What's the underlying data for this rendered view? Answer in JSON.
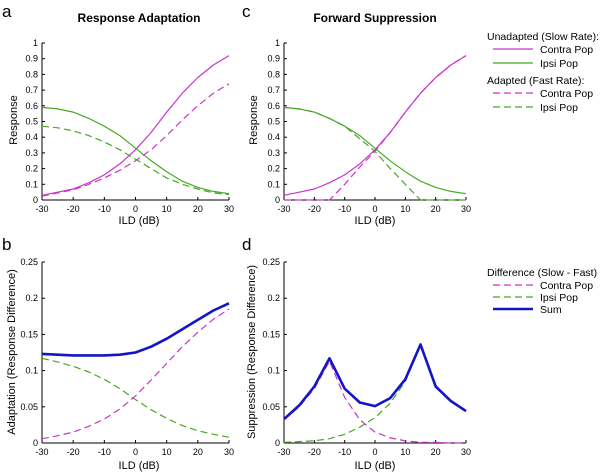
{
  "colors": {
    "contra": "#cc33cc",
    "ipsi": "#44aa22",
    "sum": "#1515c8"
  },
  "panels": {
    "a": {
      "label": "a",
      "title": "Response Adaptation",
      "xlabel": "ILD (dB)",
      "ylabel": "Response",
      "xlim": [
        -30,
        30
      ],
      "ylim": [
        0,
        1
      ],
      "xticks": [
        "-30",
        "-20",
        "-10",
        "0",
        "10",
        "20",
        "30"
      ],
      "yticks": [
        "0",
        "0.1",
        "0.2",
        "0.3",
        "0.4",
        "0.5",
        "0.6",
        "0.7",
        "0.8",
        "0.9",
        "1"
      ]
    },
    "c": {
      "label": "c",
      "title": "Forward Suppression",
      "xlabel": "ILD (dB)",
      "ylabel": "Response",
      "xlim": [
        -30,
        30
      ],
      "ylim": [
        0,
        1
      ],
      "xticks": [
        "-30",
        "-20",
        "-10",
        "0",
        "10",
        "20",
        "30"
      ],
      "yticks": [
        "0",
        "0.1",
        "0.2",
        "0.3",
        "0.4",
        "0.5",
        "0.6",
        "0.7",
        "0.8",
        "0.9",
        "1"
      ]
    },
    "b": {
      "label": "b",
      "title": "",
      "xlabel": "ILD (dB)",
      "ylabel": "Adaptation (Response Difference)",
      "xlim": [
        -30,
        30
      ],
      "ylim": [
        0,
        0.25
      ],
      "xticks": [
        "-30",
        "-20",
        "-10",
        "0",
        "10",
        "20",
        "30"
      ],
      "yticks": [
        "0",
        "0.05",
        "0.1",
        "0.15",
        "0.2",
        "0.25"
      ]
    },
    "d": {
      "label": "d",
      "title": "",
      "xlabel": "ILD (dB)",
      "ylabel": "Suppression (Response Difference)",
      "xlim": [
        -30,
        30
      ],
      "ylim": [
        0,
        0.25
      ],
      "xticks": [
        "-30",
        "-20",
        "-10",
        "0",
        "10",
        "20",
        "30"
      ],
      "yticks": [
        "0",
        "0.05",
        "0.1",
        "0.15",
        "0.2",
        "0.25"
      ]
    }
  },
  "legend_top": {
    "group1_title": "Unadapted (Slow Rate):",
    "group1_items": [
      "Contra Pop",
      "Ipsi Pop"
    ],
    "group2_title": "Adapted (Fast Rate):",
    "group2_items": [
      "Contra Pop",
      "Ipsi Pop"
    ]
  },
  "legend_bottom": {
    "title": "Difference (Slow - Fast)",
    "items": [
      "Contra Pop",
      "Ipsi Pop",
      "Sum"
    ]
  },
  "chart_data": [
    {
      "panel": "a",
      "type": "line",
      "title": "Response Adaptation",
      "xlabel": "ILD (dB)",
      "ylabel": "Response",
      "xlim": [
        -30,
        30
      ],
      "ylim": [
        0,
        1
      ],
      "x": [
        -30,
        -25,
        -20,
        -15,
        -10,
        -5,
        0,
        5,
        10,
        15,
        20,
        25,
        30
      ],
      "series": [
        {
          "name": "Unadapted Contra Pop",
          "style": "solid",
          "color": "contra",
          "values": [
            0.03,
            0.05,
            0.07,
            0.11,
            0.16,
            0.23,
            0.32,
            0.43,
            0.56,
            0.68,
            0.78,
            0.86,
            0.92
          ]
        },
        {
          "name": "Unadapted Ipsi Pop",
          "style": "solid",
          "color": "ipsi",
          "values": [
            0.59,
            0.58,
            0.56,
            0.52,
            0.47,
            0.41,
            0.33,
            0.25,
            0.18,
            0.12,
            0.08,
            0.055,
            0.04
          ]
        },
        {
          "name": "Adapted Contra Pop",
          "style": "dashed",
          "color": "contra",
          "values": [
            0.025,
            0.045,
            0.065,
            0.1,
            0.14,
            0.19,
            0.25,
            0.32,
            0.41,
            0.51,
            0.6,
            0.68,
            0.74
          ]
        },
        {
          "name": "Adapted Ipsi Pop",
          "style": "dashed",
          "color": "ipsi",
          "values": [
            0.47,
            0.46,
            0.44,
            0.41,
            0.37,
            0.32,
            0.26,
            0.2,
            0.14,
            0.1,
            0.07,
            0.045,
            0.035
          ]
        }
      ]
    },
    {
      "panel": "c",
      "type": "line",
      "title": "Forward Suppression",
      "xlabel": "ILD (dB)",
      "ylabel": "Response",
      "xlim": [
        -30,
        30
      ],
      "ylim": [
        0,
        1
      ],
      "x": [
        -30,
        -25,
        -20,
        -15,
        -10,
        -5,
        0,
        5,
        10,
        15,
        20,
        25,
        30
      ],
      "series": [
        {
          "name": "Unadapted Contra Pop",
          "style": "solid",
          "color": "contra",
          "values": [
            0.03,
            0.05,
            0.07,
            0.11,
            0.16,
            0.23,
            0.32,
            0.43,
            0.56,
            0.68,
            0.78,
            0.86,
            0.92
          ]
        },
        {
          "name": "Unadapted Ipsi Pop",
          "style": "solid",
          "color": "ipsi",
          "values": [
            0.59,
            0.58,
            0.56,
            0.52,
            0.47,
            0.41,
            0.33,
            0.25,
            0.18,
            0.12,
            0.08,
            0.055,
            0.04
          ]
        },
        {
          "name": "Adapted Contra Pop",
          "style": "dashed",
          "color": "contra",
          "values": [
            0,
            0,
            0,
            0,
            0.1,
            0.21,
            0.31,
            0.43,
            0.56,
            0.68,
            0.78,
            0.86,
            0.92
          ]
        },
        {
          "name": "Adapted Ipsi Pop",
          "style": "dashed",
          "color": "ipsi",
          "values": [
            0.59,
            0.58,
            0.56,
            0.52,
            0.47,
            0.39,
            0.31,
            0.2,
            0.1,
            0,
            0,
            0,
            0
          ]
        }
      ]
    },
    {
      "panel": "b",
      "type": "line",
      "title": "",
      "xlabel": "ILD (dB)",
      "ylabel": "Adaptation (Response Difference)",
      "xlim": [
        -30,
        30
      ],
      "ylim": [
        0,
        0.25
      ],
      "x": [
        -30,
        -25,
        -20,
        -15,
        -10,
        -5,
        0,
        5,
        10,
        15,
        20,
        25,
        30
      ],
      "series": [
        {
          "name": "Contra Pop",
          "style": "dashed",
          "color": "contra",
          "values": [
            0.006,
            0.01,
            0.015,
            0.023,
            0.033,
            0.047,
            0.065,
            0.087,
            0.11,
            0.133,
            0.153,
            0.171,
            0.185
          ]
        },
        {
          "name": "Ipsi Pop",
          "style": "dashed",
          "color": "ipsi",
          "values": [
            0.117,
            0.112,
            0.106,
            0.098,
            0.088,
            0.075,
            0.06,
            0.046,
            0.034,
            0.024,
            0.017,
            0.012,
            0.008
          ]
        },
        {
          "name": "Sum",
          "style": "solid-thick",
          "color": "sum",
          "values": [
            0.123,
            0.122,
            0.121,
            0.121,
            0.121,
            0.122,
            0.125,
            0.133,
            0.144,
            0.157,
            0.17,
            0.183,
            0.193
          ]
        }
      ]
    },
    {
      "panel": "d",
      "type": "line",
      "title": "",
      "xlabel": "ILD (dB)",
      "ylabel": "Suppression (Response Difference)",
      "xlim": [
        -30,
        30
      ],
      "ylim": [
        0,
        0.25
      ],
      "x": [
        -30,
        -25,
        -20,
        -15,
        -10,
        -5,
        0,
        5,
        10,
        15,
        20,
        25,
        30
      ],
      "series": [
        {
          "name": "Contra Pop",
          "style": "dashed",
          "color": "contra",
          "values": [
            0.032,
            0.05,
            0.075,
            0.113,
            0.063,
            0.032,
            0.015,
            0.007,
            0.003,
            0.001,
            0.001,
            0,
            0
          ]
        },
        {
          "name": "Ipsi Pop",
          "style": "dashed",
          "color": "ipsi",
          "values": [
            0.001,
            0.002,
            0.003,
            0.006,
            0.012,
            0.022,
            0.035,
            0.055,
            0.085,
            0.134,
            0.077,
            0.058,
            0.044
          ]
        },
        {
          "name": "Sum",
          "style": "solid-thick",
          "color": "sum",
          "values": [
            0.033,
            0.052,
            0.078,
            0.117,
            0.075,
            0.056,
            0.051,
            0.062,
            0.088,
            0.136,
            0.078,
            0.058,
            0.044
          ]
        }
      ]
    }
  ]
}
